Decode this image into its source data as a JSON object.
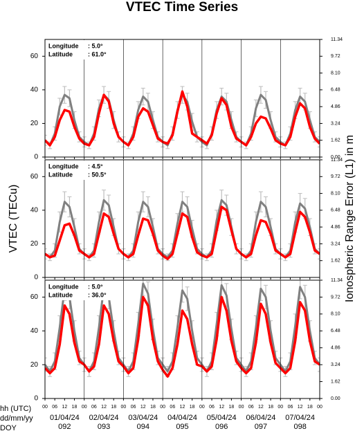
{
  "title": "VTEC Time Series",
  "ylabel": "VTEC (TECu)",
  "y2label": "Ionospheric Range Error (L1) in m",
  "x_rows": [
    "hh (UTC)",
    "dd/mm/yy",
    "DOY"
  ],
  "xlim": [
    0,
    168
  ],
  "xticks": [
    {
      "value": 0,
      "label": "00"
    },
    {
      "value": 6,
      "label": "06"
    },
    12,
    18,
    {
      "value": 24,
      "label": "00"
    },
    {
      "value": 30,
      "label": "06"
    },
    {
      "value": 36,
      "label": "12"
    },
    {
      "value": 42,
      "label": "18"
    },
    {
      "value": 48,
      "label": "00"
    },
    {
      "value": 54,
      "label": "06"
    },
    {
      "value": 60,
      "label": "12"
    },
    {
      "value": 66,
      "label": "18"
    },
    {
      "value": 72,
      "label": "00"
    },
    {
      "value": 78,
      "label": "06"
    },
    {
      "value": 84,
      "label": "12"
    },
    {
      "value": 90,
      "label": "18"
    },
    {
      "value": 96,
      "label": "00"
    },
    {
      "value": 102,
      "label": "06"
    },
    {
      "value": 108,
      "label": "12"
    },
    {
      "value": 114,
      "label": "18"
    },
    {
      "value": 120,
      "label": "00"
    },
    {
      "value": 126,
      "label": "06"
    },
    {
      "value": 132,
      "label": "12"
    },
    {
      "value": 138,
      "label": "18"
    },
    {
      "value": 144,
      "label": "00"
    },
    {
      "value": 150,
      "label": "06"
    },
    {
      "value": 156,
      "label": "12"
    },
    {
      "value": 162,
      "label": "18"
    },
    {
      "value": 168,
      "label": "00"
    }
  ],
  "days": [
    {
      "date": "01/04/24",
      "doy": "092"
    },
    {
      "date": "02/04/24",
      "doy": "093"
    },
    {
      "date": "03/04/24",
      "doy": "094"
    },
    {
      "date": "04/04/24",
      "doy": "095"
    },
    {
      "date": "05/04/24",
      "doy": "096"
    },
    {
      "date": "06/04/24",
      "doy": "097"
    },
    {
      "date": "07/04/24",
      "doy": "098"
    }
  ],
  "chart_data": [
    {
      "type": "line",
      "annotations": [
        {
          "label": "Longitude",
          "value": ":  5.0°"
        },
        {
          "label": "Latitude",
          "value": ": 61.0°"
        }
      ],
      "ylim": [
        0,
        70
      ],
      "yticks": [
        0,
        20,
        40,
        60
      ],
      "y2lim": [
        0,
        11.34
      ],
      "y2ticks": [
        {
          "value": 0,
          "label": "0.00"
        },
        1.62,
        3.24,
        4.86,
        6.48,
        {
          "value": 8.1,
          "label": "8.10"
        },
        9.72,
        11.34
      ],
      "x": [
        0,
        3,
        6,
        9,
        12,
        15,
        18,
        21,
        24,
        27,
        30,
        33,
        36,
        39,
        42,
        45,
        48,
        51,
        54,
        57,
        60,
        63,
        66,
        69,
        72,
        75,
        78,
        81,
        84,
        87,
        90,
        93,
        96,
        99,
        102,
        105,
        108,
        111,
        114,
        117,
        120,
        123,
        126,
        129,
        132,
        135,
        138,
        141,
        144,
        147,
        150,
        153,
        156,
        159,
        162,
        165,
        168
      ],
      "series": [
        {
          "color": "#808080",
          "values": [
            10,
            7,
            14,
            30,
            37,
            35,
            22,
            12,
            9,
            7,
            14,
            29,
            37,
            34,
            22,
            12,
            9,
            7,
            14,
            28,
            36,
            33,
            22,
            12,
            9,
            7,
            14,
            28,
            37,
            33,
            21,
            12,
            9,
            7,
            14,
            28,
            36,
            33,
            22,
            12,
            9,
            7,
            14,
            29,
            37,
            34,
            22,
            12,
            9,
            7,
            14,
            28,
            36,
            33,
            22,
            12,
            9
          ],
          "errors": [
            3,
            2,
            4,
            5,
            5,
            5,
            5,
            3,
            3,
            2,
            4,
            5,
            5,
            5,
            5,
            3,
            3,
            2,
            4,
            5,
            5,
            5,
            5,
            3,
            3,
            2,
            4,
            5,
            5,
            5,
            5,
            3,
            3,
            2,
            4,
            5,
            5,
            5,
            5,
            3,
            3,
            2,
            4,
            5,
            5,
            5,
            5,
            3,
            3,
            2,
            4,
            5,
            5,
            5,
            5,
            3,
            3
          ]
        },
        {
          "color": "#ff0000",
          "values": [
            10,
            7,
            12,
            22,
            28,
            27,
            18,
            11,
            8,
            7,
            12,
            26,
            37,
            33,
            20,
            12,
            9,
            7,
            12,
            24,
            29,
            27,
            19,
            11,
            9,
            8,
            13,
            27,
            39,
            30,
            14,
            12,
            10,
            8,
            13,
            26,
            35,
            31,
            18,
            11,
            9,
            7,
            12,
            20,
            24,
            23,
            17,
            10,
            8,
            7,
            12,
            24,
            32,
            29,
            18,
            11,
            8
          ]
        }
      ]
    },
    {
      "type": "line",
      "annotations": [
        {
          "label": "Longitude",
          "value": ":  4.5°"
        },
        {
          "label": "Latitude",
          "value": ": 50.5°"
        }
      ],
      "ylim": [
        0,
        70
      ],
      "yticks": [
        0,
        20,
        40,
        60
      ],
      "y2lim": [
        0,
        11.34
      ],
      "y2ticks": [
        1.62,
        3.24,
        4.86,
        6.48,
        {
          "value": 8.1,
          "label": "8.10"
        },
        9.72,
        11.34
      ],
      "x": [
        0,
        3,
        6,
        9,
        12,
        15,
        18,
        21,
        24,
        27,
        30,
        33,
        36,
        39,
        42,
        45,
        48,
        51,
        54,
        57,
        60,
        63,
        66,
        69,
        72,
        75,
        78,
        81,
        84,
        87,
        90,
        93,
        96,
        99,
        102,
        105,
        108,
        111,
        114,
        117,
        120,
        123,
        126,
        129,
        132,
        135,
        138,
        141,
        144,
        147,
        150,
        153,
        156,
        159,
        162,
        165,
        168
      ],
      "series": [
        {
          "color": "#808080",
          "values": [
            14,
            12,
            16,
            33,
            45,
            42,
            30,
            17,
            14,
            12,
            16,
            33,
            46,
            43,
            30,
            17,
            14,
            12,
            16,
            33,
            45,
            42,
            30,
            17,
            14,
            12,
            16,
            32,
            45,
            42,
            29,
            17,
            14,
            12,
            16,
            34,
            46,
            43,
            30,
            17,
            14,
            12,
            16,
            33,
            45,
            42,
            30,
            17,
            14,
            12,
            16,
            33,
            44,
            41,
            30,
            17,
            14
          ],
          "errors": [
            3,
            2,
            4,
            6,
            6,
            6,
            5,
            3,
            3,
            2,
            4,
            6,
            6,
            6,
            5,
            3,
            3,
            2,
            4,
            6,
            6,
            6,
            5,
            3,
            3,
            2,
            4,
            6,
            6,
            6,
            5,
            3,
            3,
            2,
            4,
            6,
            6,
            6,
            5,
            3,
            3,
            2,
            4,
            6,
            6,
            6,
            5,
            3,
            3,
            2,
            4,
            6,
            6,
            6,
            5,
            3,
            3
          ]
        },
        {
          "color": "#ff0000",
          "values": [
            14,
            12,
            13,
            22,
            31,
            32,
            25,
            16,
            14,
            12,
            14,
            26,
            38,
            36,
            26,
            17,
            14,
            12,
            14,
            25,
            35,
            34,
            26,
            16,
            13,
            11,
            14,
            26,
            38,
            36,
            24,
            15,
            13,
            12,
            14,
            28,
            42,
            40,
            28,
            17,
            14,
            12,
            14,
            25,
            34,
            33,
            26,
            16,
            14,
            12,
            14,
            27,
            39,
            36,
            27,
            16,
            14
          ]
        }
      ]
    },
    {
      "type": "line",
      "annotations": [
        {
          "label": "Longitude",
          "value": ":  5.0°"
        },
        {
          "label": "Latitude",
          "value": ": 36.0°"
        }
      ],
      "ylim": [
        0,
        70
      ],
      "yticks": [
        0,
        20,
        40,
        60
      ],
      "y2lim": [
        0,
        11.34
      ],
      "y2ticks": [
        {
          "value": 0,
          "label": "0.00"
        },
        1.62,
        3.24,
        4.86,
        6.48,
        {
          "value": 8.1,
          "label": "8.10"
        },
        9.72,
        11.34
      ],
      "x": [
        0,
        3,
        6,
        9,
        12,
        15,
        18,
        21,
        24,
        27,
        30,
        33,
        36,
        39,
        42,
        45,
        48,
        51,
        54,
        57,
        60,
        63,
        66,
        69,
        72,
        75,
        78,
        81,
        84,
        87,
        90,
        93,
        96,
        99,
        102,
        105,
        108,
        111,
        114,
        117,
        120,
        123,
        126,
        129,
        132,
        135,
        138,
        141,
        144,
        147,
        150,
        153,
        156,
        159,
        162,
        165,
        168
      ],
      "series": [
        {
          "color": "#808080",
          "values": [
            20,
            16,
            22,
            42,
            65,
            60,
            40,
            24,
            20,
            16,
            22,
            42,
            66,
            60,
            40,
            24,
            20,
            16,
            22,
            44,
            68,
            62,
            41,
            24,
            20,
            16,
            22,
            42,
            64,
            59,
            40,
            24,
            20,
            16,
            22,
            44,
            67,
            61,
            41,
            24,
            20,
            16,
            22,
            42,
            65,
            60,
            40,
            24,
            20,
            16,
            22,
            43,
            66,
            60,
            40,
            24,
            20
          ],
          "errors": [
            4,
            3,
            5,
            7,
            7,
            7,
            6,
            4,
            4,
            3,
            5,
            7,
            7,
            7,
            6,
            4,
            4,
            3,
            5,
            7,
            7,
            7,
            6,
            4,
            4,
            3,
            5,
            7,
            7,
            7,
            6,
            4,
            4,
            3,
            5,
            7,
            7,
            7,
            6,
            4,
            4,
            3,
            5,
            7,
            7,
            7,
            6,
            4,
            4,
            3,
            5,
            7,
            7,
            7,
            6,
            4,
            4
          ]
        },
        {
          "color": "#ff0000",
          "values": [
            18,
            15,
            18,
            32,
            55,
            50,
            33,
            22,
            20,
            16,
            19,
            32,
            55,
            50,
            34,
            22,
            19,
            15,
            18,
            35,
            60,
            55,
            35,
            22,
            17,
            13,
            18,
            32,
            52,
            47,
            32,
            20,
            19,
            16,
            19,
            35,
            60,
            52,
            34,
            22,
            18,
            15,
            18,
            33,
            56,
            50,
            33,
            21,
            18,
            15,
            18,
            34,
            57,
            52,
            34,
            22,
            20
          ]
        }
      ]
    }
  ]
}
